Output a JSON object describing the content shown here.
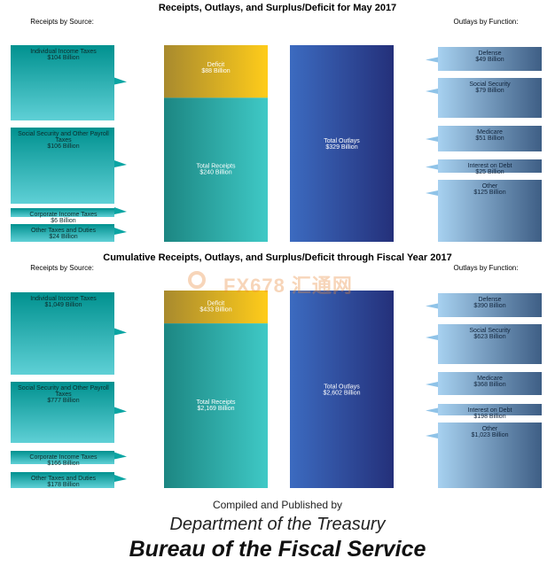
{
  "chart_data": [
    {
      "type": "bar",
      "title": "Receipts, Outlays, and Surplus/Deficit for May 2017",
      "receipts_heading": "Receipts by Source:",
      "outlays_heading": "Outlays by Function:",
      "receipts": [
        {
          "name": "Individual Income Taxes",
          "label": "$104 Billion",
          "value": 104
        },
        {
          "name": "Social Security and Other Payroll Taxes",
          "label": "$106 Billion",
          "value": 106
        },
        {
          "name": "Corporate Income Taxes",
          "label": "$6 Billion",
          "value": 6
        },
        {
          "name": "Other Taxes and Duties",
          "label": "$24 Billion",
          "value": 24
        }
      ],
      "deficit": {
        "name": "Deficit",
        "label": "$88 Billion",
        "value": 88
      },
      "total_receipts": {
        "name": "Total Receipts",
        "label": "$240 Billion",
        "value": 240
      },
      "total_outlays": {
        "name": "Total Outlays",
        "label": "$329 Billion",
        "value": 329
      },
      "outlays": [
        {
          "name": "Defense",
          "label": "$49 Billion",
          "value": 49
        },
        {
          "name": "Social Security",
          "label": "$79 Billion",
          "value": 79
        },
        {
          "name": "Medicare",
          "label": "$51 Billion",
          "value": 51
        },
        {
          "name": "Interest on Debt",
          "label": "$25 Billion",
          "value": 25
        },
        {
          "name": "Other",
          "label": "$125 Billion",
          "value": 125
        }
      ]
    },
    {
      "type": "bar",
      "title": "Cumulative Receipts, Outlays, and Surplus/Deficit through Fiscal Year 2017",
      "receipts_heading": "Receipts by Source:",
      "outlays_heading": "Outlays by Function:",
      "receipts": [
        {
          "name": "Individual Income Taxes",
          "label": "$1,049 Billion",
          "value": 1049
        },
        {
          "name": "Social Security and Other Payroll Taxes",
          "label": "$777 Billion",
          "value": 777
        },
        {
          "name": "Corporate Income Taxes",
          "label": "$166 Billion",
          "value": 166
        },
        {
          "name": "Other Taxes and Duties",
          "label": "$178 Billion",
          "value": 178
        }
      ],
      "deficit": {
        "name": "Deficit",
        "label": "$433 Billion",
        "value": 433
      },
      "total_receipts": {
        "name": "Total Receipts",
        "label": "$2,169 Billion",
        "value": 2169
      },
      "total_outlays": {
        "name": "Total Outlays",
        "label": "$2,602 Billion",
        "value": 2602
      },
      "outlays": [
        {
          "name": "Defense",
          "label": "$390 Billion",
          "value": 390
        },
        {
          "name": "Social Security",
          "label": "$623 Billion",
          "value": 623
        },
        {
          "name": "Medicare",
          "label": "$368 Billion",
          "value": 368
        },
        {
          "name": "Interest on Debt",
          "label": "$198 Billion",
          "value": 198
        },
        {
          "name": "Other",
          "label": "$1,023 Billion",
          "value": 1023
        }
      ]
    }
  ],
  "footer": {
    "compiled": "Compiled and Published by",
    "department": "Department of the Treasury",
    "bureau": "Bureau of the Fiscal Service"
  },
  "watermark": "FX678 汇通网",
  "colors": {
    "receipts_top": "#00918f",
    "receipts_bottom": "#5fd0d6",
    "deficit_left": "#a88a2e",
    "deficit_right": "#ffcc1a",
    "outlays_left": "#3c6bc0",
    "outlays_right": "#24307a",
    "function_left": "#a7d1f0",
    "function_right": "#3e5e85"
  }
}
